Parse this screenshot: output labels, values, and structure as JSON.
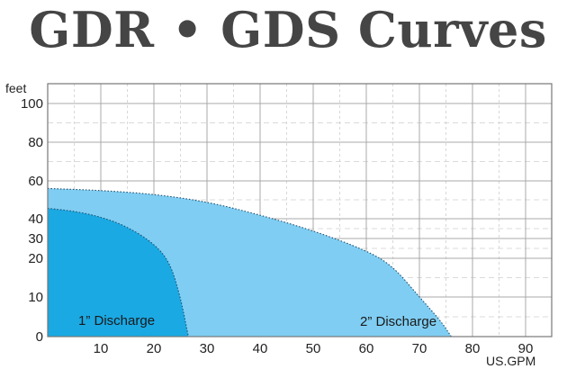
{
  "title": "GDR • GDS Curves",
  "chart_data": {
    "type": "area",
    "ylabel": "feet",
    "xlabel": "US.GPM",
    "x_ticks": [
      10,
      20,
      30,
      40,
      50,
      60,
      70,
      80,
      90
    ],
    "y_ticks": [
      {
        "label": "0",
        "value": 0
      },
      {
        "label": "10",
        "value": 10
      },
      {
        "label": "20",
        "value": 20
      },
      {
        "label": "30",
        "value": 30
      },
      {
        "label": "40",
        "value": 40
      },
      {
        "label": "60",
        "value": 60
      },
      {
        "label": "80",
        "value": 80
      },
      {
        "label": "100",
        "value": 100
      }
    ],
    "xlim": [
      0,
      95
    ],
    "grid": true,
    "series": [
      {
        "name": "2” Discharge",
        "color": "#7fcdf2",
        "points": [
          [
            0,
            56
          ],
          [
            10,
            55
          ],
          [
            20,
            53
          ],
          [
            30,
            49
          ],
          [
            40,
            42
          ],
          [
            50,
            34
          ],
          [
            60,
            24
          ],
          [
            65,
            18
          ],
          [
            70,
            10
          ],
          [
            74,
            4
          ],
          [
            76,
            0
          ]
        ]
      },
      {
        "name": "1” Discharge",
        "color": "#1aa9e3",
        "points": [
          [
            0,
            45.5
          ],
          [
            5,
            44
          ],
          [
            10,
            41
          ],
          [
            15,
            36
          ],
          [
            20,
            27.5
          ],
          [
            23,
            19
          ],
          [
            25,
            10
          ],
          [
            26.5,
            0
          ]
        ]
      }
    ]
  }
}
